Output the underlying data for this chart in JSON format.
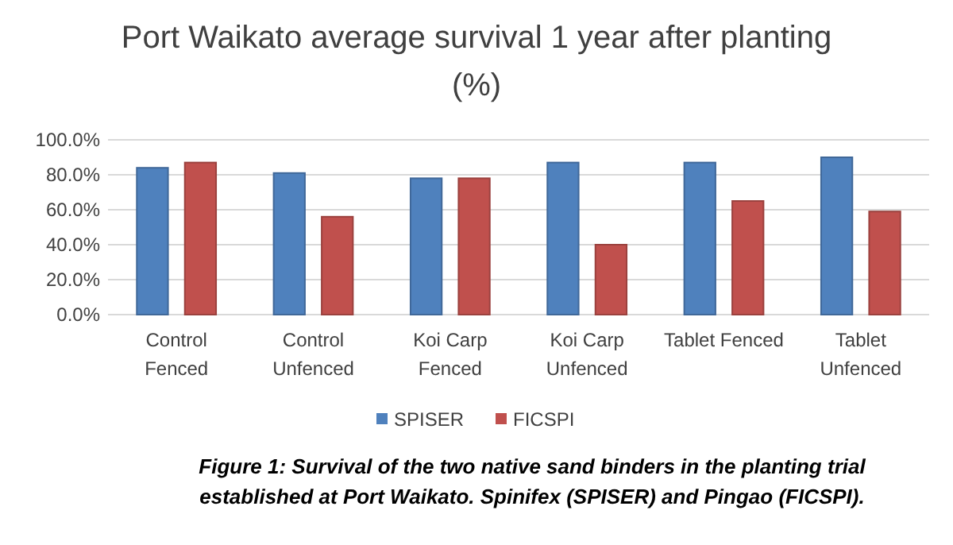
{
  "chart_data": {
    "type": "bar",
    "title": "Port Waikato average survival 1 year after planting (%)",
    "categories": [
      "Control Fenced",
      "Control Unfenced",
      "Koi Carp Fenced",
      "Koi Carp Unfenced",
      "Tablet Fenced",
      "Tablet Unfenced"
    ],
    "series": [
      {
        "name": "SPISER",
        "color": "#4f81bd",
        "values": [
          84,
          81,
          78,
          87,
          87,
          90
        ]
      },
      {
        "name": "FICSPI",
        "color": "#c0504d",
        "values": [
          87,
          56,
          78,
          40,
          65,
          59
        ]
      }
    ],
    "ylim": [
      0,
      100
    ],
    "yticks": [
      {
        "value": 0,
        "label": "0.0%"
      },
      {
        "value": 20,
        "label": "20.0%"
      },
      {
        "value": 40,
        "label": "40.0%"
      },
      {
        "value": 60,
        "label": "60.0%"
      },
      {
        "value": 80,
        "label": "80.0%"
      },
      {
        "value": 100,
        "label": "100.0%"
      }
    ],
    "grid": "y",
    "legend": "bottom",
    "annotations": [
      "Figure 1: Survival of the two native sand binders in the planting trial established at Port Waikato. Spinifex (SPISER) and Pingao (FICSPI)."
    ]
  }
}
